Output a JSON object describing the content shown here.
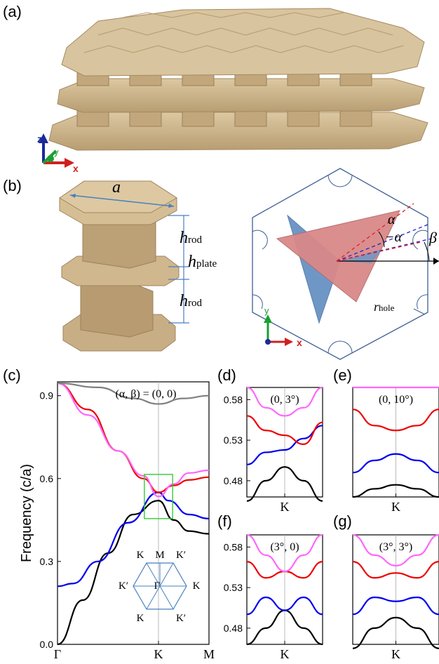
{
  "panel_labels": {
    "a": "(a)",
    "b": "(b)",
    "c": "(c)",
    "d": "(d)",
    "e": "(e)",
    "f": "(f)",
    "g": "(g)"
  },
  "panel_a": {
    "axes": {
      "z": "z",
      "y": "y",
      "x": "x"
    }
  },
  "panel_b": {
    "dim_a": "a",
    "h_rod": "h",
    "h_rod_sub": "rod",
    "h_plate": "h",
    "h_plate_sub": "plate",
    "alpha": "α",
    "neg_alpha": "−α",
    "beta": "β",
    "r_hole": "r",
    "r_hole_sub": "hole",
    "axes": {
      "y": "y",
      "x": "x"
    }
  },
  "colors": {
    "material": "#c9b38c",
    "triangle_red": "#d98989",
    "triangle_blue": "#6f97c6",
    "frame": "#3d5f95"
  },
  "chart_data": [
    {
      "panel": "c",
      "type": "line",
      "title": "(α, β) = (0, 0)",
      "ylabel": "Frequency (c/a)",
      "ylim": [
        0,
        0.95
      ],
      "yticks": [
        "0.0",
        "0.3",
        "0.6",
        "0.9"
      ],
      "xticks": [
        "Γ",
        "K",
        "M"
      ],
      "inset_bz": {
        "labels": [
          "K",
          "M",
          "K′",
          "K′",
          "Γ",
          "K",
          "K",
          "K′"
        ]
      },
      "series": [
        {
          "color": "#000000",
          "points": [
            [
              0,
              0
            ],
            [
              0.25,
              0.16
            ],
            [
              0.5,
              0.33
            ],
            [
              0.75,
              0.47
            ],
            [
              1,
              0.52
            ],
            [
              1.15,
              0.45
            ],
            [
              1.3,
              0.41
            ],
            [
              1.5,
              0.4
            ]
          ]
        },
        {
          "color": "#0000ee",
          "points": [
            [
              0,
              0.21
            ],
            [
              0.15,
              0.22
            ],
            [
              0.4,
              0.3
            ],
            [
              0.7,
              0.44
            ],
            [
              1,
              0.55
            ],
            [
              1.1,
              0.52
            ],
            [
              1.3,
              0.47
            ],
            [
              1.5,
              0.455
            ]
          ]
        },
        {
          "color": "#ee0000",
          "points": [
            [
              0,
              0.945
            ],
            [
              0.3,
              0.85
            ],
            [
              0.6,
              0.7
            ],
            [
              0.85,
              0.6
            ],
            [
              1,
              0.55
            ],
            [
              1.15,
              0.575
            ],
            [
              1.3,
              0.595
            ],
            [
              1.5,
              0.605
            ]
          ]
        },
        {
          "color": "#ff66ff",
          "points": [
            [
              0,
              0.945
            ],
            [
              0.3,
              0.83
            ],
            [
              0.6,
              0.7
            ],
            [
              0.85,
              0.61
            ],
            [
              1,
              0.535
            ],
            [
              1.15,
              0.58
            ],
            [
              1.3,
              0.62
            ],
            [
              1.5,
              0.63
            ]
          ]
        },
        {
          "color": "#808080",
          "points": [
            [
              0,
              0.945
            ],
            [
              0.4,
              0.93
            ],
            [
              0.75,
              0.89
            ],
            [
              1,
              0.87
            ],
            [
              1.25,
              0.89
            ],
            [
              1.5,
              0.9
            ]
          ]
        }
      ]
    },
    {
      "panel": "d",
      "type": "line",
      "title": "(0, 3°)",
      "ylim": [
        0.46,
        0.595
      ],
      "yticks": [
        "0.48",
        "0.53",
        "0.58"
      ],
      "xticks": [
        "K"
      ],
      "series": [
        {
          "color": "#000000",
          "points": [
            [
              -1,
              0.455
            ],
            [
              -0.5,
              0.48
            ],
            [
              0,
              0.497
            ],
            [
              0.5,
              0.48
            ],
            [
              1,
              0.455
            ]
          ]
        },
        {
          "color": "#0000ee",
          "points": [
            [
              -1,
              0.5
            ],
            [
              -0.5,
              0.515
            ],
            [
              0,
              0.518
            ],
            [
              0.5,
              0.532
            ],
            [
              1,
              0.548
            ]
          ]
        },
        {
          "color": "#ee0000",
          "points": [
            [
              -1,
              0.56
            ],
            [
              -0.5,
              0.542
            ],
            [
              0,
              0.536
            ],
            [
              0.5,
              0.525
            ],
            [
              1,
              0.552
            ]
          ]
        },
        {
          "color": "#ff66ff",
          "points": [
            [
              -1,
              0.595
            ],
            [
              -0.5,
              0.57
            ],
            [
              0,
              0.56
            ],
            [
              0.5,
              0.57
            ],
            [
              1,
              0.595
            ]
          ]
        }
      ]
    },
    {
      "panel": "e",
      "type": "line",
      "title": "(0, 10°)",
      "ylim": [
        0.46,
        0.595
      ],
      "xticks": [
        "K"
      ],
      "series": [
        {
          "color": "#000000",
          "points": [
            [
              -1,
              0.46
            ],
            [
              -0.5,
              0.47
            ],
            [
              0,
              0.475
            ],
            [
              0.5,
              0.47
            ],
            [
              1,
              0.46
            ]
          ]
        },
        {
          "color": "#0000ee",
          "points": [
            [
              -1,
              0.49
            ],
            [
              -0.5,
              0.505
            ],
            [
              0,
              0.513
            ],
            [
              0.5,
              0.505
            ],
            [
              1,
              0.49
            ]
          ]
        },
        {
          "color": "#ee0000",
          "points": [
            [
              -1,
              0.568
            ],
            [
              -0.5,
              0.548
            ],
            [
              0,
              0.542
            ],
            [
              0.5,
              0.548
            ],
            [
              1,
              0.568
            ]
          ]
        },
        {
          "color": "#ff66ff",
          "points": [
            [
              -1,
              0.595
            ],
            [
              1,
              0.595
            ]
          ]
        }
      ]
    },
    {
      "panel": "f",
      "type": "line",
      "title": "(3°, 0)",
      "ylim": [
        0.46,
        0.595
      ],
      "yticks": [
        "0.48",
        "0.53",
        "0.58"
      ],
      "xticks": [
        "K"
      ],
      "series": [
        {
          "color": "#000000",
          "points": [
            [
              -1,
              0.46
            ],
            [
              -0.5,
              0.48
            ],
            [
              0,
              0.502
            ],
            [
              0.5,
              0.48
            ],
            [
              1,
              0.46
            ]
          ]
        },
        {
          "color": "#0000ee",
          "points": [
            [
              -1,
              0.497
            ],
            [
              -0.5,
              0.518
            ],
            [
              0,
              0.502
            ],
            [
              0.5,
              0.518
            ],
            [
              1,
              0.497
            ]
          ]
        },
        {
          "color": "#ee0000",
          "points": [
            [
              -1,
              0.562
            ],
            [
              -0.5,
              0.542
            ],
            [
              0,
              0.55
            ],
            [
              0.5,
              0.542
            ],
            [
              1,
              0.562
            ]
          ]
        },
        {
          "color": "#ff66ff",
          "points": [
            [
              -1,
              0.595
            ],
            [
              -0.5,
              0.57
            ],
            [
              0,
              0.55
            ],
            [
              0.5,
              0.57
            ],
            [
              1,
              0.595
            ]
          ]
        }
      ]
    },
    {
      "panel": "g",
      "type": "line",
      "title": "(3°, 3°)",
      "ylim": [
        0.46,
        0.595
      ],
      "xticks": [
        "K"
      ],
      "series": [
        {
          "color": "#000000",
          "points": [
            [
              -1,
              0.455
            ],
            [
              -0.5,
              0.48
            ],
            [
              0,
              0.493
            ],
            [
              0.5,
              0.48
            ],
            [
              1,
              0.455
            ]
          ]
        },
        {
          "color": "#0000ee",
          "points": [
            [
              -1,
              0.497
            ],
            [
              -0.5,
              0.518
            ],
            [
              0,
              0.513
            ],
            [
              0.5,
              0.518
            ],
            [
              1,
              0.497
            ]
          ]
        },
        {
          "color": "#ee0000",
          "points": [
            [
              -1,
              0.562
            ],
            [
              -0.5,
              0.542
            ],
            [
              0,
              0.548
            ],
            [
              0.5,
              0.542
            ],
            [
              1,
              0.562
            ]
          ]
        },
        {
          "color": "#ff66ff",
          "points": [
            [
              -1,
              0.595
            ],
            [
              -0.5,
              0.57
            ],
            [
              0,
              0.557
            ],
            [
              0.5,
              0.57
            ],
            [
              1,
              0.595
            ]
          ]
        }
      ]
    }
  ]
}
